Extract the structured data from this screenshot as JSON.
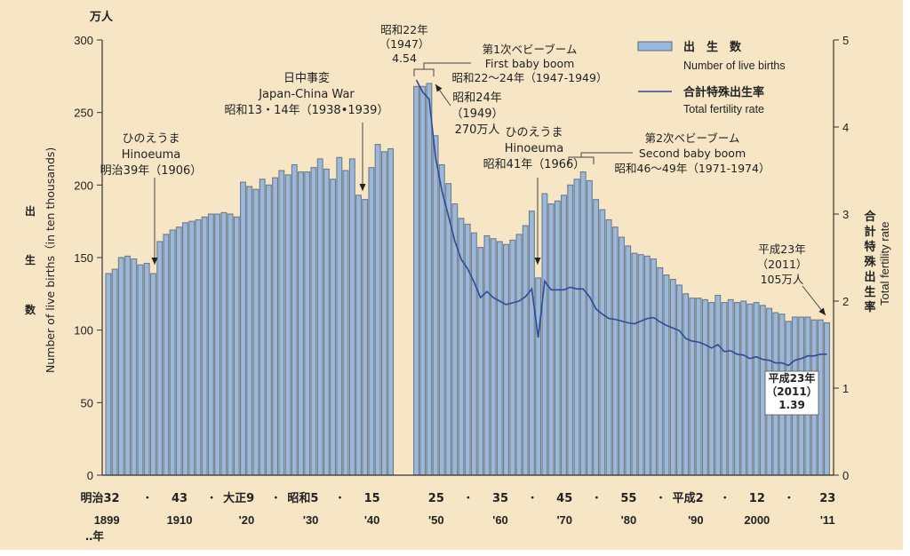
{
  "chart_data": {
    "type": "bar",
    "title": "",
    "left_axis": {
      "unit_label": "万人",
      "label_ja": [
        "出",
        "生",
        "数"
      ],
      "label_en": "Number of live births（in ten thousands)",
      "ticks": [
        0,
        50,
        100,
        150,
        200,
        250,
        300
      ],
      "ylim": [
        0,
        300
      ]
    },
    "right_axis": {
      "label_ja": "合計特殊出生率",
      "label_en": "Total fertility rate",
      "ticks": [
        0,
        1,
        2,
        3,
        4,
        5
      ],
      "ylim": [
        0,
        5
      ]
    },
    "x_ticks": [
      {
        "year": 1899,
        "era": "明治32",
        "western": "1899"
      },
      {
        "year": 1905,
        "era": "・",
        "western": ""
      },
      {
        "year": 1910,
        "era": "43",
        "western": "1910"
      },
      {
        "year": 1915,
        "era": "・",
        "western": ""
      },
      {
        "year": 1920,
        "era": "大正9",
        "western": "'20"
      },
      {
        "year": 1925,
        "era": "・",
        "western": ""
      },
      {
        "year": 1930,
        "era": "昭和5",
        "western": "'30"
      },
      {
        "year": 1935,
        "era": "・",
        "western": ""
      },
      {
        "year": 1940,
        "era": "15",
        "western": "'40"
      },
      {
        "year": 1950,
        "era": "25",
        "western": "'50"
      },
      {
        "year": 1955,
        "era": "・",
        "western": ""
      },
      {
        "year": 1960,
        "era": "35",
        "western": "'60"
      },
      {
        "year": 1965,
        "era": "・",
        "western": ""
      },
      {
        "year": 1970,
        "era": "45",
        "western": "'70"
      },
      {
        "year": 1975,
        "era": "・",
        "western": ""
      },
      {
        "year": 1980,
        "era": "55",
        "western": "'80"
      },
      {
        "year": 1985,
        "era": "・",
        "western": ""
      },
      {
        "year": 1990,
        "era": "平成2",
        "western": "'90"
      },
      {
        "year": 1995,
        "era": "・",
        "western": ""
      },
      {
        "year": 2000,
        "era": "12",
        "western": "2000"
      },
      {
        "year": 2005,
        "era": "・",
        "western": ""
      },
      {
        "year": 2011,
        "era": "23",
        "western": "'11"
      }
    ],
    "x_unit_label": "‥年",
    "legend": [
      {
        "type": "bar",
        "label_ja": "出　生　数",
        "label_en": "Number of live births",
        "color": "#9ab8dc"
      },
      {
        "type": "line",
        "label_ja": "合計特殊出生率",
        "label_en": "Total fertility rate",
        "color": "#2c4c94"
      }
    ],
    "legend_position": "top-right",
    "series": [
      {
        "name": "Number of live births",
        "axis": "left",
        "years": [
          1899,
          1900,
          1901,
          1902,
          1903,
          1904,
          1905,
          1906,
          1907,
          1908,
          1909,
          1910,
          1911,
          1912,
          1913,
          1914,
          1915,
          1916,
          1917,
          1918,
          1919,
          1920,
          1921,
          1922,
          1923,
          1924,
          1925,
          1926,
          1927,
          1928,
          1929,
          1930,
          1931,
          1932,
          1933,
          1934,
          1935,
          1936,
          1937,
          1938,
          1939,
          1940,
          1941,
          1942,
          1943,
          1947,
          1948,
          1949,
          1950,
          1951,
          1952,
          1953,
          1954,
          1955,
          1956,
          1957,
          1958,
          1959,
          1960,
          1961,
          1962,
          1963,
          1964,
          1965,
          1966,
          1967,
          1968,
          1969,
          1970,
          1971,
          1972,
          1973,
          1974,
          1975,
          1976,
          1977,
          1978,
          1979,
          1980,
          1981,
          1982,
          1983,
          1984,
          1985,
          1986,
          1987,
          1988,
          1989,
          1990,
          1991,
          1992,
          1993,
          1994,
          1995,
          1996,
          1997,
          1998,
          1999,
          2000,
          2001,
          2002,
          2003,
          2004,
          2005,
          2006,
          2007,
          2008,
          2009,
          2010,
          2011
        ],
        "values": [
          139,
          142,
          150,
          151,
          149,
          145,
          146,
          139,
          161,
          166,
          169,
          171,
          174,
          175,
          176,
          178,
          180,
          180,
          181,
          180,
          178,
          202,
          199,
          197,
          204,
          200,
          205,
          210,
          207,
          214,
          209,
          209,
          212,
          218,
          211,
          204,
          219,
          210,
          218,
          193,
          190,
          212,
          228,
          223,
          225,
          268,
          268,
          270,
          234,
          214,
          201,
          187,
          177,
          173,
          167,
          157,
          165,
          163,
          161,
          159,
          162,
          166,
          172,
          182,
          136,
          194,
          187,
          189,
          193,
          200,
          204,
          209,
          203,
          190,
          183,
          176,
          171,
          164,
          158,
          153,
          152,
          151,
          149,
          143,
          138,
          135,
          131,
          125,
          122,
          122,
          121,
          119,
          124,
          119,
          121,
          119,
          120,
          118,
          119,
          117,
          115,
          112,
          111,
          106,
          109,
          109,
          109,
          107,
          107,
          105
        ]
      },
      {
        "name": "Total fertility rate",
        "axis": "right",
        "years": [
          1947,
          1948,
          1949,
          1950,
          1951,
          1952,
          1953,
          1954,
          1955,
          1956,
          1957,
          1958,
          1959,
          1960,
          1961,
          1962,
          1963,
          1964,
          1965,
          1966,
          1967,
          1968,
          1969,
          1970,
          1971,
          1972,
          1973,
          1974,
          1975,
          1976,
          1977,
          1978,
          1979,
          1980,
          1981,
          1982,
          1983,
          1984,
          1985,
          1986,
          1987,
          1988,
          1989,
          1990,
          1991,
          1992,
          1993,
          1994,
          1995,
          1996,
          1997,
          1998,
          1999,
          2000,
          2001,
          2002,
          2003,
          2004,
          2005,
          2006,
          2007,
          2008,
          2009,
          2010,
          2011
        ],
        "values": [
          4.54,
          4.4,
          4.32,
          3.65,
          3.26,
          2.98,
          2.69,
          2.48,
          2.37,
          2.22,
          2.04,
          2.11,
          2.04,
          2.0,
          1.96,
          1.98,
          2.0,
          2.05,
          2.14,
          1.58,
          2.23,
          2.13,
          2.13,
          2.13,
          2.16,
          2.14,
          2.14,
          2.05,
          1.91,
          1.85,
          1.8,
          1.79,
          1.77,
          1.75,
          1.74,
          1.77,
          1.8,
          1.81,
          1.76,
          1.72,
          1.69,
          1.66,
          1.57,
          1.54,
          1.53,
          1.5,
          1.46,
          1.5,
          1.42,
          1.43,
          1.39,
          1.38,
          1.34,
          1.36,
          1.33,
          1.32,
          1.29,
          1.29,
          1.26,
          1.32,
          1.34,
          1.37,
          1.37,
          1.39,
          1.39
        ]
      }
    ],
    "annotations": [
      {
        "id": "hinoeuma1906",
        "lines": [
          "ひのえうま",
          "Hinoeuma",
          "明治39年（1906）"
        ]
      },
      {
        "id": "war",
        "lines": [
          "日中事変",
          "Japan-China War",
          "昭和13・14年（1938•1939）"
        ]
      },
      {
        "id": "tfr1947",
        "lines": [
          "昭和22年",
          "（1947）",
          "4.54"
        ]
      },
      {
        "id": "boom1",
        "lines": [
          "第1次ベビーブーム",
          "First baby boom",
          "昭和22～24年（1947-1949）"
        ]
      },
      {
        "id": "births1949",
        "lines": [
          "昭和24年",
          "（1949）",
          "270万人"
        ]
      },
      {
        "id": "hinoeuma1966",
        "lines": [
          "ひのえうま",
          "Hinoeuma",
          "昭和41年（1966）"
        ]
      },
      {
        "id": "boom2",
        "lines": [
          "第2次ベビーブーム",
          "Second baby boom",
          "昭和46～49年（1971-1974）"
        ]
      },
      {
        "id": "births2011",
        "lines": [
          "平成23年",
          "（2011）",
          "105万人"
        ]
      },
      {
        "id": "tfr2011",
        "lines": [
          "平成23年",
          "（2011）",
          "1.39"
        ]
      }
    ]
  }
}
